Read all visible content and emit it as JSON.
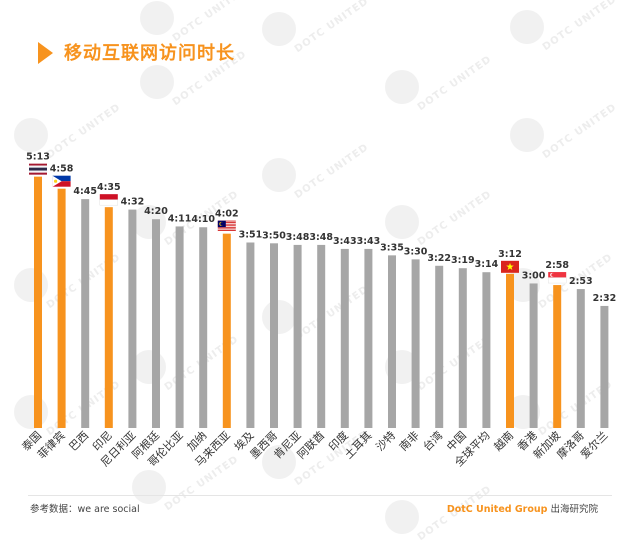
{
  "title": "移动互联网访问时长",
  "source_text": "参考数据：we are social",
  "brand_name": "DotC United Group",
  "brand_suffix": " 出海研究院",
  "watermark_text": "DOTC UNITED",
  "colors": {
    "accent": "#f7931e",
    "gray": "#a6a6a6",
    "text": "#333333"
  },
  "chart_data": {
    "type": "bar",
    "title": "移动互联网访问时长",
    "xlabel": "",
    "ylabel": "",
    "units": "hours:minutes",
    "ylim": [
      0,
      330
    ],
    "grid": false,
    "categories": [
      "泰国",
      "菲律宾",
      "巴西",
      "印尼",
      "尼日利亚",
      "阿根廷",
      "哥伦比亚",
      "加纳",
      "马来西亚",
      "埃及",
      "墨西哥",
      "肯尼亚",
      "阿联酋",
      "印度",
      "土耳其",
      "沙特",
      "南非",
      "台湾",
      "中国",
      "全球平均",
      "越南",
      "香港",
      "新加坡",
      "摩洛哥",
      "爱尔兰"
    ],
    "labels": [
      "5:13",
      "4:58",
      "4:45",
      "4:35",
      "4:32",
      "4:20",
      "4:11",
      "4:10",
      "4:02",
      "3:51",
      "3:50",
      "3:48",
      "3:48",
      "3:43",
      "3:43",
      "3:35",
      "3:30",
      "3:22",
      "3:19",
      "3:14",
      "3:12",
      "3:00",
      "2:58",
      "2:53",
      "2:32"
    ],
    "values": [
      313,
      298,
      285,
      275,
      272,
      260,
      251,
      250,
      242,
      231,
      230,
      228,
      228,
      223,
      223,
      215,
      210,
      202,
      199,
      194,
      192,
      180,
      178,
      173,
      152
    ],
    "highlight": [
      true,
      true,
      false,
      true,
      false,
      false,
      false,
      false,
      true,
      false,
      false,
      false,
      false,
      false,
      false,
      false,
      false,
      false,
      false,
      false,
      true,
      false,
      true,
      false,
      false
    ],
    "flags": [
      "thailand-flag",
      "philippines-flag",
      "",
      "indonesia-flag",
      "",
      "",
      "",
      "",
      "malaysia-flag",
      "",
      "",
      "",
      "",
      "",
      "",
      "",
      "",
      "",
      "",
      "",
      "vietnam-flag",
      "",
      "singapore-flag",
      "",
      ""
    ]
  }
}
